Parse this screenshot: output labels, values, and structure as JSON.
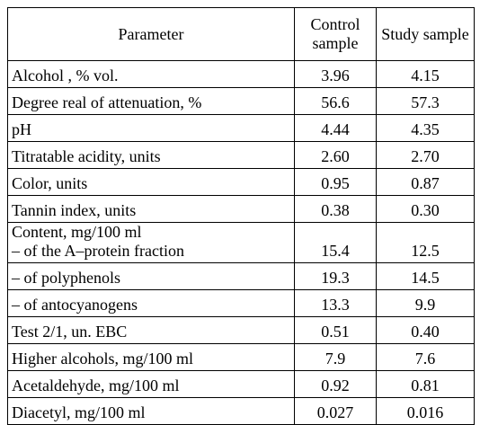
{
  "table": {
    "header": [
      "Parameter",
      "Control sample",
      "Study sample"
    ],
    "rows": [
      {
        "parameter": "Alcohol , % vol.",
        "control": "3.96",
        "study": "4.15"
      },
      {
        "parameter": "Degree real of attenuation, %",
        "control": "56.6",
        "study": "57.3"
      },
      {
        "parameter": "pH",
        "control": "4.44",
        "study": "4.35"
      },
      {
        "parameter": "Titratable acidity, units",
        "control": "2.60",
        "study": "2.70"
      },
      {
        "parameter": "Color, units",
        "control": "0.95",
        "study": "0.87"
      },
      {
        "parameter": "Tannin index, units",
        "control": "0.38",
        "study": "0.30"
      },
      {
        "heading": "Content, mg/100 ml",
        "parameter": "– of the A–protein fraction",
        "control": "15.4",
        "study": "12.5"
      },
      {
        "parameter": "– of polyphenols",
        "control": "19.3",
        "study": "14.5"
      },
      {
        "parameter": "– of antocyanogens",
        "control": "13.3",
        "study": "9.9"
      },
      {
        "parameter": "Test 2/1, un. EBC",
        "control": "0.51",
        "study": "0.40"
      },
      {
        "parameter": "Higher alcohols, mg/100 ml",
        "control": "7.9",
        "study": "7.6"
      },
      {
        "parameter": "Acetaldehyde, mg/100 ml",
        "control": "0.92",
        "study": "0.81"
      },
      {
        "parameter": "Diacetyl, mg/100 ml",
        "control": "0.027",
        "study": "0.016"
      }
    ]
  }
}
